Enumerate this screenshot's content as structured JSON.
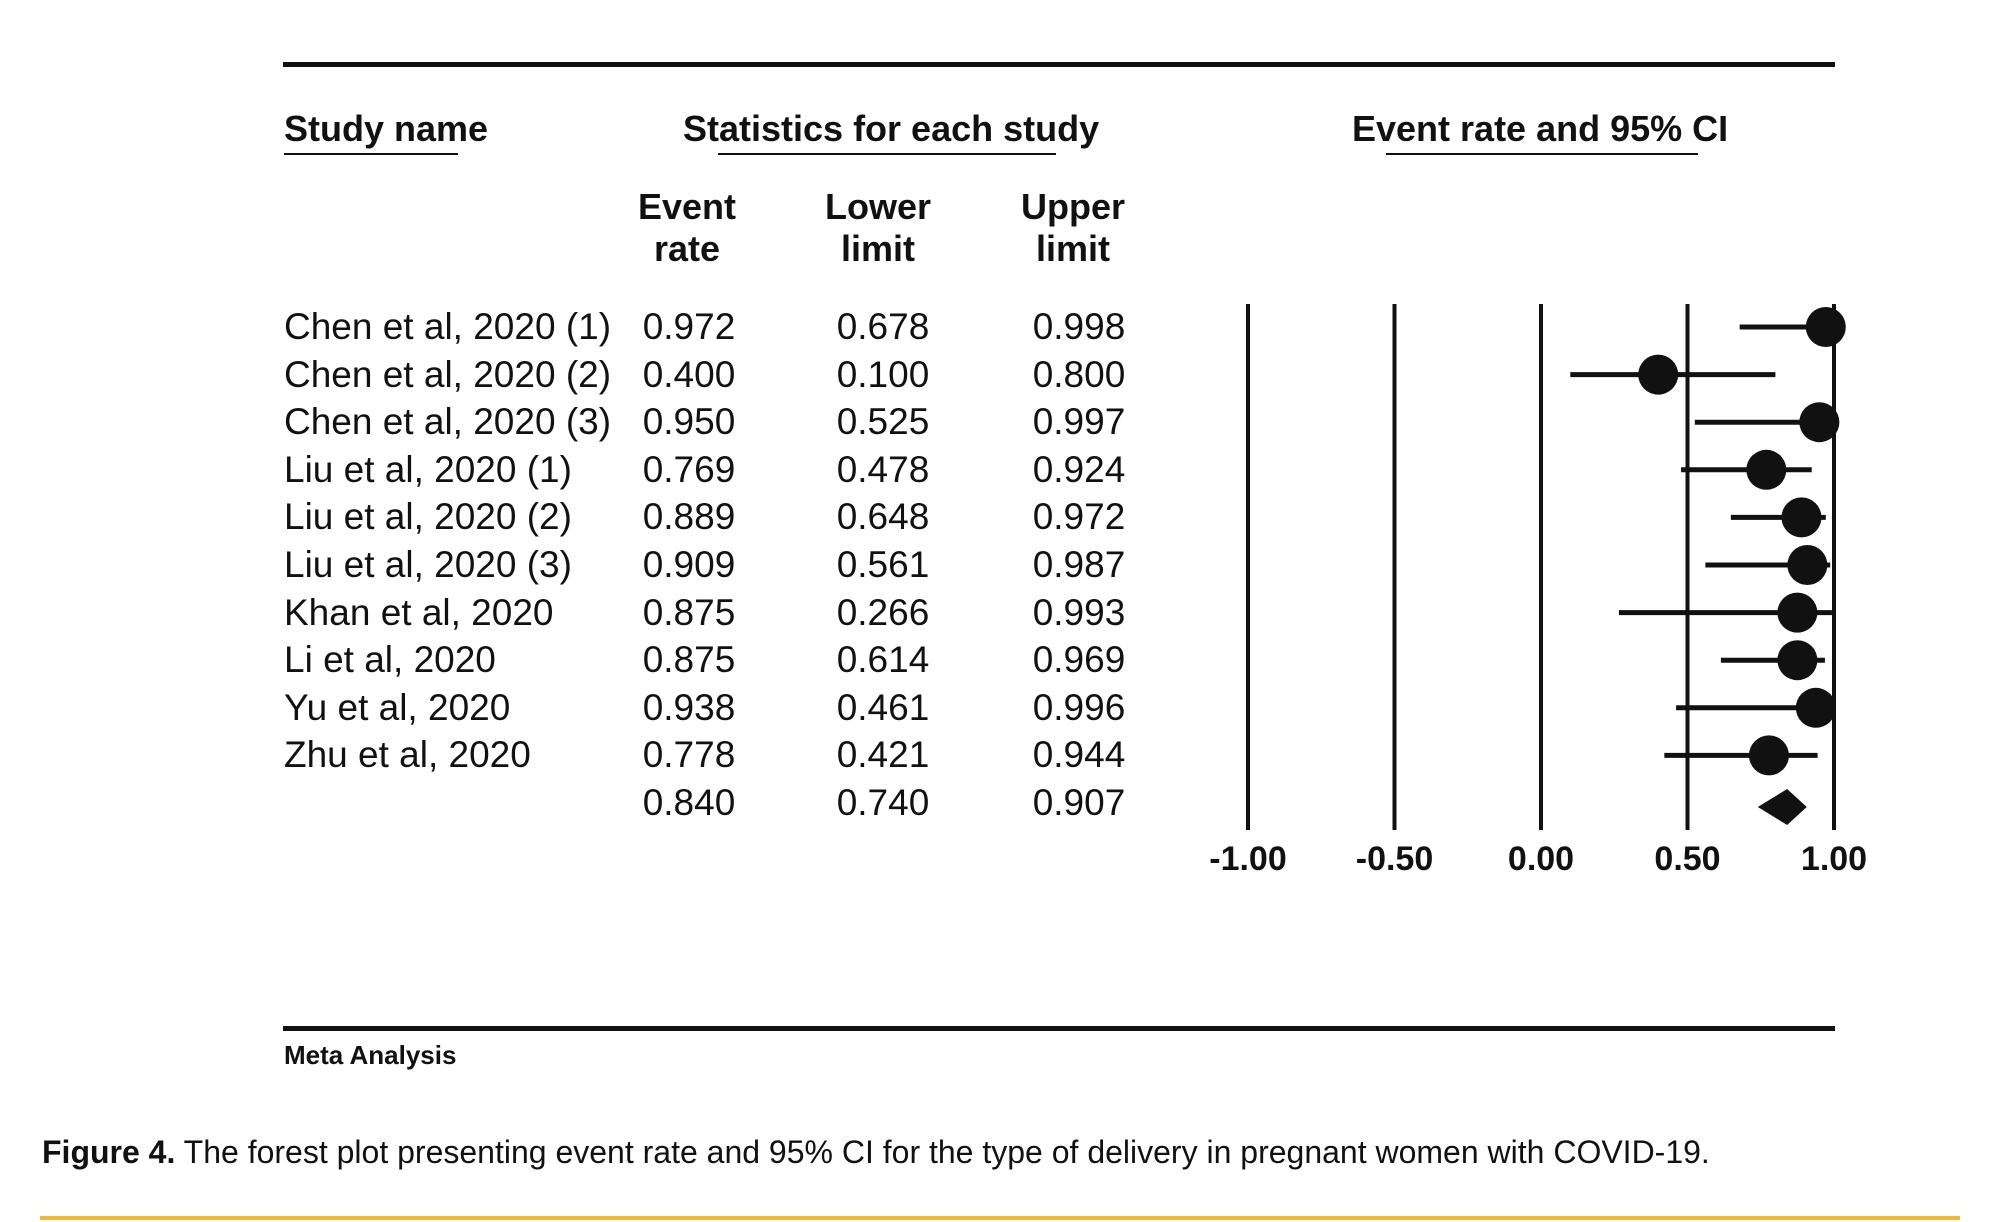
{
  "headers": {
    "study_name": "Study name",
    "statistics": "Statistics for each study",
    "plot": "Event rate and 95% CI",
    "event_rate": [
      "Event",
      "rate"
    ],
    "lower_limit": [
      "Lower",
      "limit"
    ],
    "upper_limit": [
      "Upper",
      "limit"
    ]
  },
  "rows": [
    {
      "study": "Chen et al, 2020 (1)",
      "event_rate": "0.972",
      "lower": "0.678",
      "upper": "0.998"
    },
    {
      "study": "Chen et al, 2020 (2)",
      "event_rate": "0.400",
      "lower": "0.100",
      "upper": "0.800"
    },
    {
      "study": "Chen et al, 2020 (3)",
      "event_rate": "0.950",
      "lower": "0.525",
      "upper": "0.997"
    },
    {
      "study": "Liu et al, 2020 (1)",
      "event_rate": "0.769",
      "lower": "0.478",
      "upper": "0.924"
    },
    {
      "study": "Liu et al, 2020 (2)",
      "event_rate": "0.889",
      "lower": "0.648",
      "upper": "0.972"
    },
    {
      "study": "Liu et al, 2020 (3)",
      "event_rate": "0.909",
      "lower": "0.561",
      "upper": "0.987"
    },
    {
      "study": "Khan et al, 2020",
      "event_rate": "0.875",
      "lower": "0.266",
      "upper": "0.993"
    },
    {
      "study": "Li et al, 2020",
      "event_rate": "0.875",
      "lower": "0.614",
      "upper": "0.969"
    },
    {
      "study": "Yu et al, 2020",
      "event_rate": "0.938",
      "lower": "0.461",
      "upper": "0.996"
    },
    {
      "study": "Zhu et al, 2020",
      "event_rate": "0.778",
      "lower": "0.421",
      "upper": "0.944"
    },
    {
      "study": "",
      "event_rate": "0.840",
      "lower": "0.740",
      "upper": "0.907"
    }
  ],
  "footer_label": "Meta Analysis",
  "caption": {
    "label": "Figure 4.",
    "text": "The forest plot presenting event rate and 95% CI for the type of delivery in pregnant women with COVID-19."
  },
  "colors": {
    "ink": "#111111",
    "accent_rule": "#f2b632"
  },
  "chart_data": {
    "type": "forest",
    "xlim": [
      -1.0,
      1.0
    ],
    "x_ticks": [
      "-1.00",
      "-0.50",
      "0.00",
      "0.50",
      "1.00"
    ],
    "studies": [
      {
        "name": "Chen et al, 2020 (1)",
        "estimate": 0.972,
        "lower": 0.678,
        "upper": 0.998
      },
      {
        "name": "Chen et al, 2020 (2)",
        "estimate": 0.4,
        "lower": 0.1,
        "upper": 0.8
      },
      {
        "name": "Chen et al, 2020 (3)",
        "estimate": 0.95,
        "lower": 0.525,
        "upper": 0.997
      },
      {
        "name": "Liu et al, 2020 (1)",
        "estimate": 0.769,
        "lower": 0.478,
        "upper": 0.924
      },
      {
        "name": "Liu et al, 2020 (2)",
        "estimate": 0.889,
        "lower": 0.648,
        "upper": 0.972
      },
      {
        "name": "Liu et al, 2020 (3)",
        "estimate": 0.909,
        "lower": 0.561,
        "upper": 0.987
      },
      {
        "name": "Khan et al, 2020",
        "estimate": 0.875,
        "lower": 0.266,
        "upper": 0.993
      },
      {
        "name": "Li et al, 2020",
        "estimate": 0.875,
        "lower": 0.614,
        "upper": 0.969
      },
      {
        "name": "Yu et al, 2020",
        "estimate": 0.938,
        "lower": 0.461,
        "upper": 0.996
      },
      {
        "name": "Zhu et al, 2020",
        "estimate": 0.778,
        "lower": 0.421,
        "upper": 0.944
      }
    ],
    "summary": {
      "estimate": 0.84,
      "lower": 0.74,
      "upper": 0.907
    }
  }
}
